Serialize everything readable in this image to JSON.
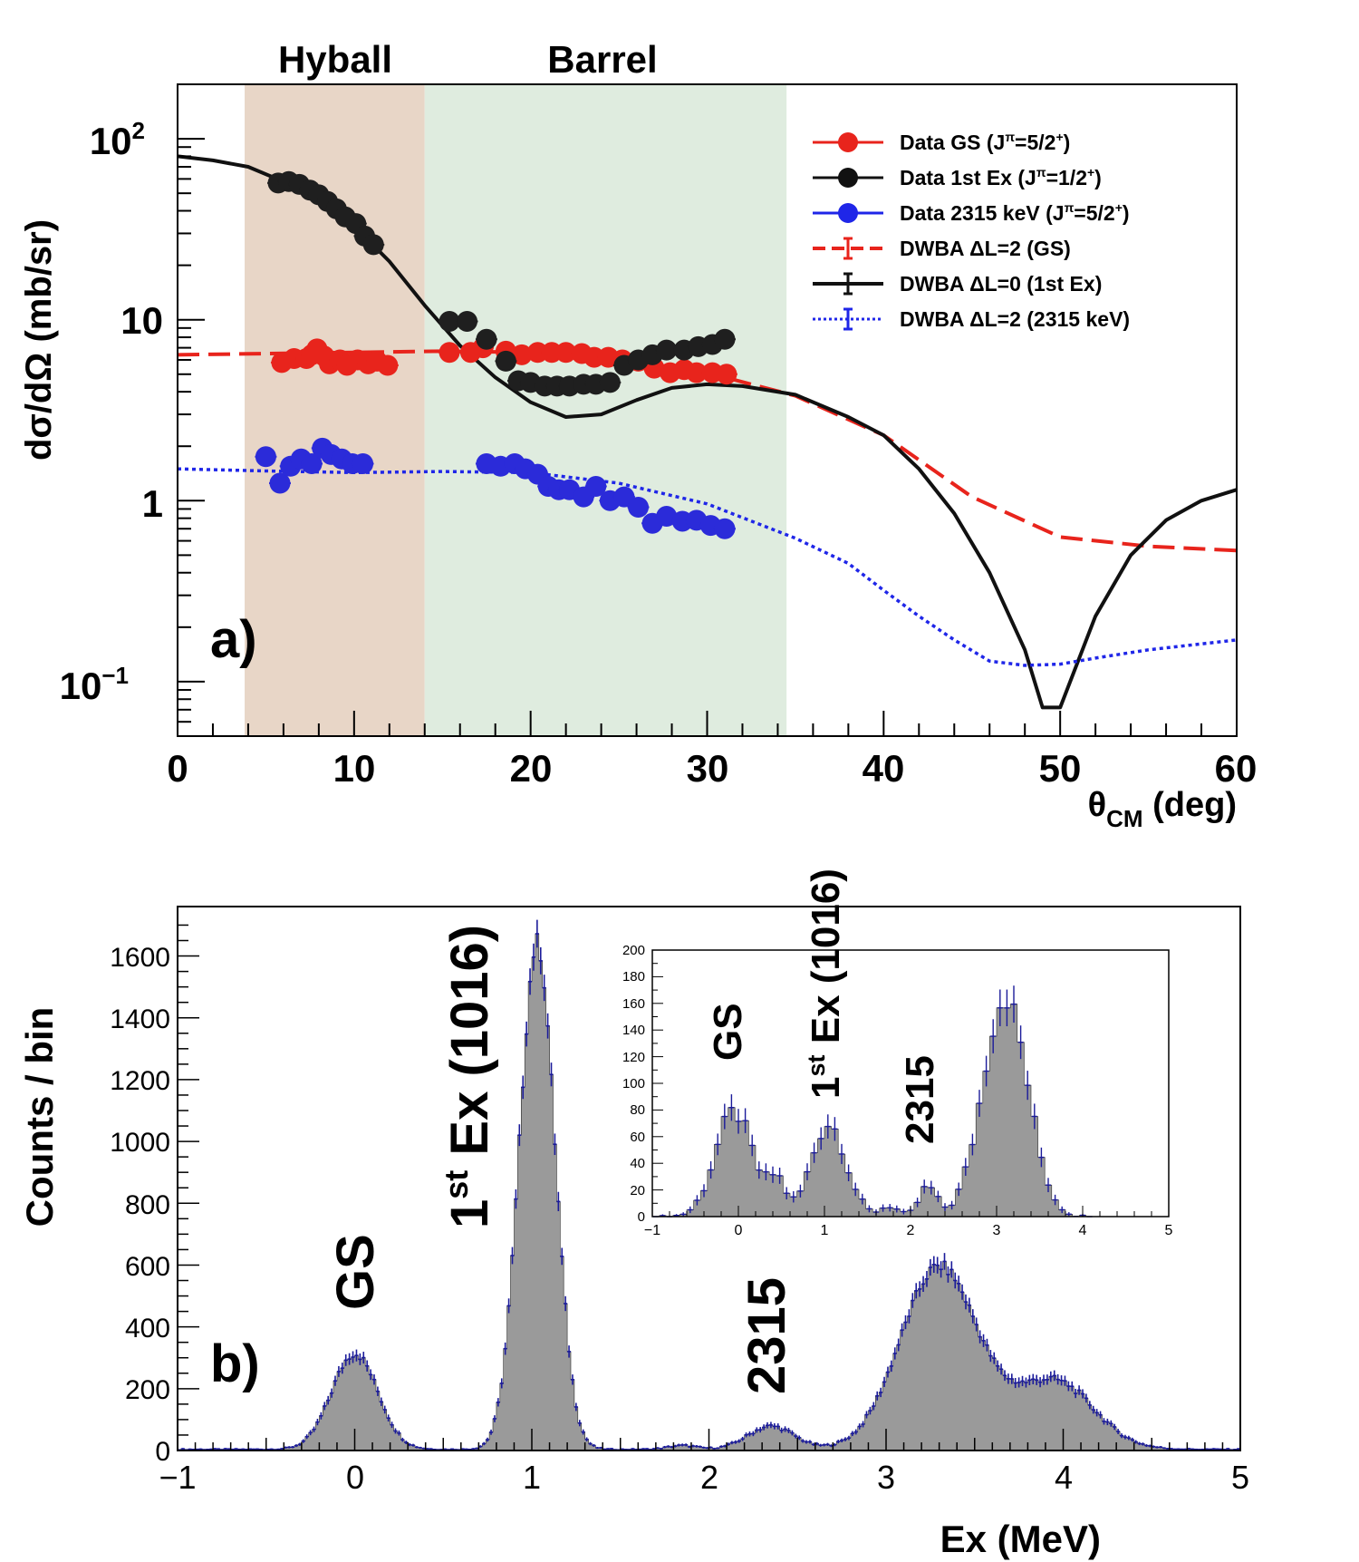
{
  "chart_data": [
    {
      "panel_label": "a)",
      "type": "scatter",
      "yscale": "log",
      "xlim": [
        0,
        60
      ],
      "ylim": [
        0.05,
        200
      ],
      "xticks": [
        "0",
        "10",
        "20",
        "30",
        "40",
        "50",
        "60"
      ],
      "xticks_values": [
        0,
        10,
        20,
        30,
        40,
        50,
        60
      ],
      "xlabel": "θ",
      "xlabel_sub": "CM",
      "xlabel_unit": " (deg)",
      "ylabel": "dσ/dΩ (mb/sr)",
      "yticks": [
        {
          "base": "10",
          "exp": "−1",
          "value": 0.1
        },
        {
          "base": "1",
          "exp": "",
          "value": 1
        },
        {
          "base": "10",
          "exp": "",
          "value": 10
        },
        {
          "base": "10",
          "exp": "2",
          "value": 100
        }
      ],
      "regions": [
        {
          "label": "Hyball",
          "x0": 3.8,
          "x1": 14.0,
          "color": "#e8d6c7"
        },
        {
          "label": "Barrel",
          "x0": 14.0,
          "x1": 34.5,
          "color": "#dfecdf"
        }
      ],
      "legend": {
        "position": "top-right",
        "entries": [
          {
            "text": "Data GS (J",
            "sup1": "π",
            "tail": "=5/2",
            "sup2": "+",
            "end": ")",
            "kind": "marker",
            "color": "#e8241c"
          },
          {
            "text": "Data 1st Ex (J",
            "sup1": "π",
            "tail": "=1/2",
            "sup2": "+",
            "end": ")",
            "kind": "marker",
            "color": "#111111"
          },
          {
            "text": "Data 2315 keV (J",
            "sup1": "π",
            "tail": "=5/2",
            "sup2": "+",
            "end": ")",
            "kind": "marker",
            "color": "#1f26e8"
          },
          {
            "text": "DWBA  ΔL=2 (GS)",
            "kind": "dashed",
            "color": "#e8241c"
          },
          {
            "text": "DWBA  ΔL=0 (1st Ex)",
            "kind": "solid",
            "color": "#111111"
          },
          {
            "text": "DWBA  ΔL=2 (2315 keV)",
            "kind": "dotted",
            "color": "#1f26e8"
          }
        ]
      },
      "series": [
        {
          "name": "Data GS (Jπ=5/2+)",
          "color": "#e8241c",
          "points": [
            [
              5.9,
              5.8
            ],
            [
              6.6,
              6.1
            ],
            [
              7.3,
              6.1
            ],
            [
              7.6,
              6.4
            ],
            [
              7.9,
              6.9
            ],
            [
              8.3,
              6.3
            ],
            [
              8.6,
              5.7
            ],
            [
              9.2,
              6.0
            ],
            [
              9.6,
              5.6
            ],
            [
              10.2,
              6.0
            ],
            [
              10.8,
              5.7
            ],
            [
              11.3,
              5.9
            ],
            [
              11.9,
              5.6
            ],
            [
              15.4,
              6.6
            ],
            [
              16.6,
              6.6
            ],
            [
              17.3,
              7.0
            ],
            [
              18.6,
              6.7
            ],
            [
              19.5,
              6.4
            ],
            [
              20.4,
              6.6
            ],
            [
              21.2,
              6.6
            ],
            [
              22.0,
              6.6
            ],
            [
              22.9,
              6.5
            ],
            [
              23.6,
              6.2
            ],
            [
              24.4,
              6.2
            ],
            [
              25.2,
              6.0
            ],
            [
              26.1,
              5.9
            ],
            [
              27.0,
              5.4
            ],
            [
              27.9,
              5.1
            ],
            [
              28.7,
              5.3
            ],
            [
              29.4,
              5.1
            ],
            [
              30.3,
              5.1
            ],
            [
              31.1,
              5.0
            ]
          ]
        },
        {
          "name": "Data 1st Ex (Jπ=1/2+)",
          "color": "#1f1f1f",
          "points": [
            [
              5.7,
              57
            ],
            [
              6.3,
              58
            ],
            [
              6.9,
              56
            ],
            [
              7.5,
              52
            ],
            [
              8.0,
              49
            ],
            [
              8.5,
              45
            ],
            [
              9.0,
              41
            ],
            [
              9.5,
              37
            ],
            [
              10.1,
              34
            ],
            [
              10.6,
              29
            ],
            [
              11.1,
              26
            ],
            [
              15.4,
              9.8
            ],
            [
              16.4,
              9.8
            ],
            [
              17.5,
              7.8
            ],
            [
              18.6,
              5.9
            ],
            [
              19.3,
              4.6
            ],
            [
              20.0,
              4.5
            ],
            [
              20.8,
              4.3
            ],
            [
              21.5,
              4.3
            ],
            [
              22.2,
              4.3
            ],
            [
              23.0,
              4.4
            ],
            [
              23.7,
              4.4
            ],
            [
              24.5,
              4.5
            ],
            [
              25.3,
              5.6
            ],
            [
              26.1,
              6.0
            ],
            [
              26.9,
              6.4
            ],
            [
              27.7,
              6.8
            ],
            [
              28.7,
              6.8
            ],
            [
              29.5,
              7.1
            ],
            [
              30.3,
              7.3
            ],
            [
              31.0,
              7.8
            ]
          ]
        },
        {
          "name": "Data 2315 keV (Jπ=5/2+)",
          "color": "#2b2bd9",
          "points": [
            [
              5.0,
              1.75
            ],
            [
              5.8,
              1.25
            ],
            [
              6.4,
              1.55
            ],
            [
              7.0,
              1.7
            ],
            [
              7.6,
              1.6
            ],
            [
              8.2,
              1.95
            ],
            [
              8.7,
              1.8
            ],
            [
              9.3,
              1.7
            ],
            [
              9.9,
              1.6
            ],
            [
              10.5,
              1.6
            ],
            [
              17.5,
              1.6
            ],
            [
              18.3,
              1.55
            ],
            [
              19.1,
              1.6
            ],
            [
              19.7,
              1.5
            ],
            [
              20.4,
              1.4
            ],
            [
              21.0,
              1.2
            ],
            [
              21.6,
              1.15
            ],
            [
              22.2,
              1.15
            ],
            [
              23.0,
              1.05
            ],
            [
              23.7,
              1.2
            ],
            [
              24.5,
              1.0
            ],
            [
              25.3,
              1.05
            ],
            [
              26.1,
              0.92
            ],
            [
              26.9,
              0.75
            ],
            [
              27.7,
              0.82
            ],
            [
              28.6,
              0.77
            ],
            [
              29.4,
              0.78
            ],
            [
              30.2,
              0.73
            ],
            [
              31.0,
              0.7
            ]
          ]
        },
        {
          "name": "DWBA ΔL=2 (GS)",
          "style": "dashed",
          "color": "#e8241c",
          "points": [
            [
              0,
              6.4
            ],
            [
              5,
              6.5
            ],
            [
              10,
              6.6
            ],
            [
              15,
              6.7
            ],
            [
              20,
              6.6
            ],
            [
              25,
              6.1
            ],
            [
              30,
              5.1
            ],
            [
              35,
              3.8
            ],
            [
              40,
              2.3
            ],
            [
              45,
              1.05
            ],
            [
              50,
              0.63
            ],
            [
              55,
              0.56
            ],
            [
              60,
              0.53
            ]
          ]
        },
        {
          "name": "DWBA ΔL=0 (1st Ex)",
          "style": "solid",
          "color": "#111111",
          "points": [
            [
              0,
              80
            ],
            [
              2,
              76
            ],
            [
              4,
              70
            ],
            [
              6,
              58
            ],
            [
              8,
              46
            ],
            [
              10,
              33
            ],
            [
              12,
              21
            ],
            [
              14,
              12
            ],
            [
              16,
              7.2
            ],
            [
              18,
              4.8
            ],
            [
              20,
              3.5
            ],
            [
              22,
              2.9
            ],
            [
              24,
              3.0
            ],
            [
              26,
              3.6
            ],
            [
              28,
              4.2
            ],
            [
              30,
              4.4
            ],
            [
              32,
              4.3
            ],
            [
              35,
              3.85
            ],
            [
              38,
              2.9
            ],
            [
              40,
              2.3
            ],
            [
              42,
              1.5
            ],
            [
              44,
              0.85
            ],
            [
              46,
              0.4
            ],
            [
              48,
              0.15
            ],
            [
              49,
              0.072
            ],
            [
              50,
              0.072
            ],
            [
              52,
              0.23
            ],
            [
              54,
              0.5
            ],
            [
              56,
              0.78
            ],
            [
              58,
              1.0
            ],
            [
              60,
              1.15
            ]
          ]
        },
        {
          "name": "DWBA ΔL=2 (2315 keV)",
          "style": "dotted",
          "color": "#1f26e8",
          "points": [
            [
              0,
              1.5
            ],
            [
              5,
              1.46
            ],
            [
              10,
              1.43
            ],
            [
              15,
              1.45
            ],
            [
              20,
              1.43
            ],
            [
              25,
              1.25
            ],
            [
              30,
              0.96
            ],
            [
              35,
              0.62
            ],
            [
              38,
              0.45
            ],
            [
              40,
              0.32
            ],
            [
              42,
              0.23
            ],
            [
              44,
              0.17
            ],
            [
              46,
              0.13
            ],
            [
              48,
              0.123
            ],
            [
              50,
              0.125
            ],
            [
              52,
              0.135
            ],
            [
              55,
              0.15
            ],
            [
              60,
              0.17
            ]
          ]
        }
      ]
    },
    {
      "panel_label": "b)",
      "type": "histogram",
      "xlim": [
        -1,
        5
      ],
      "ylim": [
        0,
        1760
      ],
      "xticks": [
        "−1",
        "0",
        "1",
        "2",
        "3",
        "4",
        "5"
      ],
      "xticks_values": [
        -1,
        0,
        1,
        2,
        3,
        4,
        5
      ],
      "yticks": [
        "0",
        "200",
        "400",
        "600",
        "800",
        "1000",
        "1200",
        "1400",
        "1600"
      ],
      "yticks_values": [
        0,
        200,
        400,
        600,
        800,
        1000,
        1200,
        1400,
        1600
      ],
      "xlabel": "Ex (MeV)",
      "ylabel": "Counts / bin",
      "bar_color": "#9a9a9a",
      "error_color": "#1b1b9a",
      "peaks": [
        {
          "center": 0.0,
          "height": 310,
          "sigma": 0.13
        },
        {
          "center": 1.03,
          "height": 1640,
          "sigma": 0.1
        },
        {
          "center": 1.85,
          "height": 12,
          "sigma": 0.08
        },
        {
          "center": 2.35,
          "height": 75,
          "sigma": 0.13
        },
        {
          "center": 3.3,
          "height": 590,
          "sigma": 0.22
        },
        {
          "center": 3.95,
          "height": 220,
          "sigma": 0.22
        }
      ],
      "baseline": 4,
      "peak_labels": [
        {
          "id": "gs",
          "text": "GS",
          "x": 0.0
        },
        {
          "id": "ex1",
          "pre": "1",
          "sup": "st",
          "post": " Ex (1016)",
          "x": 1.0
        },
        {
          "id": "e2315",
          "text": "2315",
          "x": 2.3
        }
      ],
      "inset": {
        "type": "histogram",
        "xlim": [
          -1,
          5
        ],
        "ylim": [
          0,
          200
        ],
        "xticks": [
          "−1",
          "0",
          "1",
          "2",
          "3",
          "4",
          "5"
        ],
        "xticks_values": [
          -1,
          0,
          1,
          2,
          3,
          4,
          5
        ],
        "yticks": [
          "0",
          "20",
          "40",
          "60",
          "80",
          "100",
          "120",
          "140",
          "160",
          "180",
          "200"
        ],
        "yticks_values": [
          0,
          20,
          40,
          60,
          80,
          100,
          120,
          140,
          160,
          180,
          200
        ],
        "peaks": [
          {
            "center": -0.05,
            "height": 78,
            "sigma": 0.22
          },
          {
            "center": 0.45,
            "height": 25,
            "sigma": 0.1
          },
          {
            "center": 1.05,
            "height": 70,
            "sigma": 0.2
          },
          {
            "center": 1.75,
            "height": 8,
            "sigma": 0.1
          },
          {
            "center": 2.2,
            "height": 22,
            "sigma": 0.1
          },
          {
            "center": 3.1,
            "height": 165,
            "sigma": 0.26
          }
        ],
        "data_end": 4.1,
        "peak_labels": [
          {
            "id": "gs",
            "text": "GS"
          },
          {
            "id": "ex1",
            "pre": "1",
            "sup": "st",
            "post": " Ex (1016)"
          },
          {
            "id": "e2315",
            "text": "2315"
          }
        ]
      }
    }
  ]
}
